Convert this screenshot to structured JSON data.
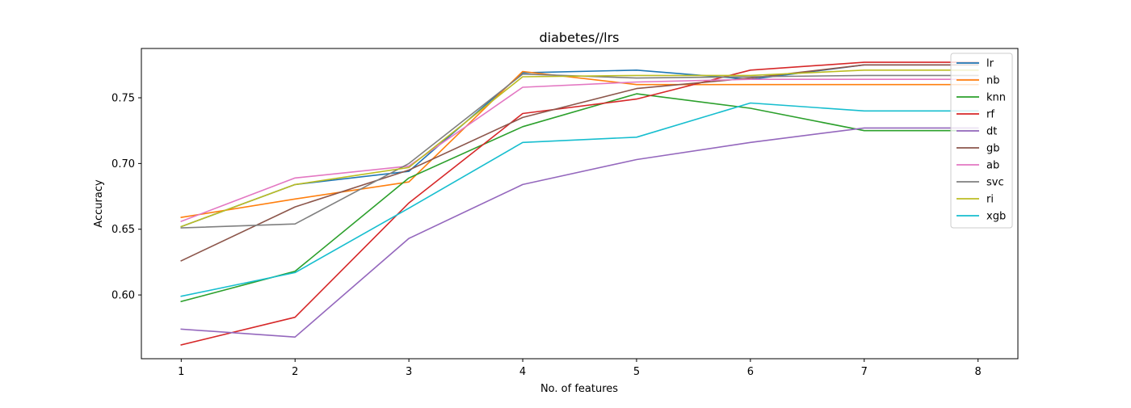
{
  "chart_data": {
    "type": "line",
    "title": "diabetes//lrs",
    "xlabel": "No. of features",
    "ylabel": "Accuracy",
    "x": [
      1,
      2,
      3,
      4,
      5,
      6,
      7,
      8
    ],
    "xlim": [
      0.65,
      8.35
    ],
    "ylim": [
      0.5515,
      0.7875
    ],
    "xticks": [
      "1",
      "2",
      "3",
      "4",
      "5",
      "6",
      "7",
      "8"
    ],
    "yticks": [
      "0.60",
      "0.65",
      "0.70",
      "0.75"
    ],
    "grid": false,
    "legend_position": "top-right",
    "series": [
      {
        "name": "lr",
        "color": "#1f77b4",
        "values": [
          0.652,
          0.684,
          0.694,
          0.769,
          0.771,
          0.764,
          0.775,
          0.775
        ]
      },
      {
        "name": "nb",
        "color": "#ff7f0e",
        "values": [
          0.659,
          0.673,
          0.686,
          0.77,
          0.76,
          0.76,
          0.76,
          0.76
        ]
      },
      {
        "name": "knn",
        "color": "#2ca02c",
        "values": [
          0.595,
          0.618,
          0.689,
          0.728,
          0.753,
          0.742,
          0.725,
          0.725
        ]
      },
      {
        "name": "rf",
        "color": "#d62728",
        "values": [
          0.562,
          0.583,
          0.67,
          0.738,
          0.749,
          0.771,
          0.777,
          0.777
        ]
      },
      {
        "name": "dt",
        "color": "#9467bd",
        "values": [
          0.574,
          0.568,
          0.643,
          0.684,
          0.703,
          0.716,
          0.727,
          0.727
        ]
      },
      {
        "name": "gb",
        "color": "#8c564b",
        "values": [
          0.626,
          0.667,
          0.695,
          0.735,
          0.757,
          0.765,
          0.775,
          0.775
        ]
      },
      {
        "name": "ab",
        "color": "#e377c2",
        "values": [
          0.656,
          0.689,
          0.698,
          0.758,
          0.762,
          0.764,
          0.764,
          0.764
        ]
      },
      {
        "name": "svc",
        "color": "#7f7f7f",
        "values": [
          0.651,
          0.654,
          0.7,
          0.768,
          0.765,
          0.766,
          0.767,
          0.767
        ]
      },
      {
        "name": "ri",
        "color": "#bcbd22",
        "values": [
          0.652,
          0.684,
          0.697,
          0.766,
          0.767,
          0.767,
          0.771,
          0.771
        ]
      },
      {
        "name": "xgb",
        "color": "#17becf",
        "values": [
          0.599,
          0.617,
          0.666,
          0.716,
          0.72,
          0.746,
          0.74,
          0.74
        ]
      }
    ]
  }
}
